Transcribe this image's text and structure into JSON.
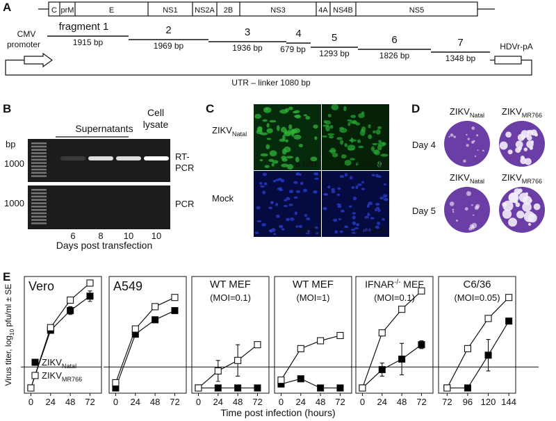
{
  "panel_labels": [
    "A",
    "B",
    "C",
    "D",
    "E"
  ],
  "panel_a": {
    "genes": [
      "C",
      "prM",
      "E",
      "NS1",
      "NS2A",
      "2B",
      "NS3",
      "4A",
      "NS4B",
      "NS5"
    ],
    "fragments": [
      {
        "label": "fragment 1",
        "size": "1915 bp"
      },
      {
        "label": "2",
        "size": "1969 bp"
      },
      {
        "label": "3",
        "size": "1936 bp"
      },
      {
        "label": "4",
        "size": "679 bp"
      },
      {
        "label": "5",
        "size": "1293 bp"
      },
      {
        "label": "6",
        "size": "1826 bp"
      },
      {
        "label": "7",
        "size": "1348 bp"
      }
    ],
    "promoter": [
      "CMV",
      "promoter"
    ],
    "terminator": "HDVr-pA",
    "linker": "UTR – linker  1080 bp"
  },
  "panel_b": {
    "bp": "bp",
    "markers": [
      "1000",
      "1000"
    ],
    "supernatants": "Supernatants",
    "lysate": [
      "Cell",
      "lysate"
    ],
    "rt_pcr": [
      "RT-",
      "PCR"
    ],
    "pcr": "PCR",
    "lanes": [
      "6",
      "8",
      "10",
      "10"
    ],
    "x_label": "Days post transfection"
  },
  "panel_c": {
    "rows": [
      {
        "name": "ZIKV",
        "sub": "Natal"
      },
      {
        "name": "Mock"
      }
    ],
    "stains": [
      [
        "α-NS1",
        "α-dsRNA"
      ],
      [
        "α-NS1",
        "α-dsRNA"
      ]
    ]
  },
  "panel_d": {
    "rows": [
      {
        "day": "Day 4",
        "labels": [
          {
            "name": "ZIKV",
            "sub": "Natal"
          },
          {
            "name": "ZIKV",
            "sub": "MR766"
          }
        ]
      },
      {
        "day": "Day 5",
        "labels": [
          {
            "name": "ZIKV",
            "sub": "Natal"
          },
          {
            "name": "ZIKV",
            "sub": "MR766"
          }
        ]
      }
    ]
  },
  "panel_e": {
    "y_label": {
      "pre": "Virus titer, log",
      "sub": "10",
      "post": " pfu/ml ± SE"
    },
    "x_label": "Time post infection (hours)"
  },
  "chart_data": [
    {
      "type": "line",
      "title": "Vero",
      "x": [
        0,
        24,
        48,
        72
      ],
      "xlim": [
        -8,
        86
      ],
      "xticks": [
        0,
        24,
        48,
        72
      ],
      "ylim": [
        -0.4,
        8.5
      ],
      "detection_limit": 1.6,
      "series": [
        {
          "name": "ZIKV",
          "name_sub": "Natal",
          "color": "#000000",
          "values": [
            0,
            4.4,
            5.9,
            7.0
          ],
          "errors": [
            null,
            null,
            0.3,
            0.4
          ]
        },
        {
          "name": "ZIKV",
          "name_sub": "MR766",
          "color": "#ffffff",
          "values": [
            0,
            4.6,
            6.7,
            8.0
          ],
          "errors": [
            null,
            null,
            0.2,
            null
          ]
        }
      ]
    },
    {
      "type": "line",
      "title": "A549",
      "x": [
        0,
        24,
        48,
        72
      ],
      "xlim": [
        -8,
        86
      ],
      "xticks": [
        0,
        24,
        48,
        72
      ],
      "ylim": [
        -0.4,
        8.5
      ],
      "detection_limit": 1.6,
      "series": [
        {
          "color": "#000000",
          "values": [
            0,
            4.1,
            5.2,
            5.9
          ],
          "errors": [
            null,
            null,
            null,
            null
          ]
        },
        {
          "color": "#ffffff",
          "values": [
            0.4,
            4.5,
            6.2,
            6.9
          ],
          "errors": [
            null,
            null,
            null,
            null
          ]
        }
      ]
    },
    {
      "type": "line",
      "title": "WT MEF",
      "subtitle": "(MOI=0.1)",
      "x": [
        0,
        24,
        48,
        72
      ],
      "xlim": [
        -8,
        86
      ],
      "xticks": [
        0,
        24,
        48,
        72
      ],
      "ylim": [
        -0.4,
        8.5
      ],
      "detection_limit": 1.6,
      "series": [
        {
          "color": "#000000",
          "values": [
            0,
            0,
            0,
            0
          ],
          "errors": [
            null,
            null,
            null,
            null
          ]
        },
        {
          "color": "#ffffff",
          "values": [
            0,
            1.3,
            2.1,
            3.3
          ],
          "errors": [
            null,
            0.8,
            1.2,
            null
          ]
        }
      ]
    },
    {
      "type": "line",
      "title": "WT MEF",
      "subtitle": "(MOI=1)",
      "x": [
        0,
        24,
        48,
        72
      ],
      "xlim": [
        -8,
        86
      ],
      "xticks": [
        0,
        24,
        48,
        72
      ],
      "ylim": [
        -0.4,
        8.5
      ],
      "detection_limit": 1.6,
      "series": [
        {
          "color": "#000000",
          "values": [
            0.3,
            0.7,
            0,
            0
          ],
          "errors": [
            null,
            null,
            null,
            null
          ]
        },
        {
          "color": "#ffffff",
          "values": [
            0.6,
            3.0,
            3.6,
            4.0
          ],
          "errors": [
            null,
            null,
            null,
            null
          ]
        }
      ]
    },
    {
      "type": "line",
      "title": "IFNAR",
      "title_sup": "-/-",
      "title_tail": " MEF",
      "subtitle": "(MOI=0.1)",
      "x": [
        0,
        24,
        48,
        72
      ],
      "xlim": [
        -8,
        86
      ],
      "xticks": [
        0,
        24,
        48,
        72
      ],
      "ylim": [
        -0.4,
        8.5
      ],
      "detection_limit": 1.6,
      "series": [
        {
          "color": "#000000",
          "values": [
            0,
            1.4,
            2.2,
            3.3
          ],
          "errors": [
            null,
            0.5,
            1.2,
            0.3
          ]
        },
        {
          "color": "#ffffff",
          "values": [
            0,
            4.2,
            6.0,
            7.4
          ],
          "errors": [
            null,
            null,
            null,
            null
          ]
        }
      ]
    },
    {
      "type": "line",
      "title": "C6/36",
      "subtitle": "(MOI=0.05)",
      "x": [
        72,
        96,
        120,
        144
      ],
      "xlim": [
        62,
        152
      ],
      "xticks": [
        72,
        96,
        120,
        144
      ],
      "ylim": [
        -0.4,
        8.5
      ],
      "detection_limit": 1.6,
      "series": [
        {
          "color": "#000000",
          "values": [
            0,
            0,
            2.5,
            5.1
          ],
          "errors": [
            null,
            null,
            1.2,
            null
          ]
        },
        {
          "color": "#ffffff",
          "values": [
            0,
            3.0,
            5.3,
            6.9
          ],
          "errors": [
            null,
            null,
            null,
            null
          ]
        }
      ]
    }
  ]
}
